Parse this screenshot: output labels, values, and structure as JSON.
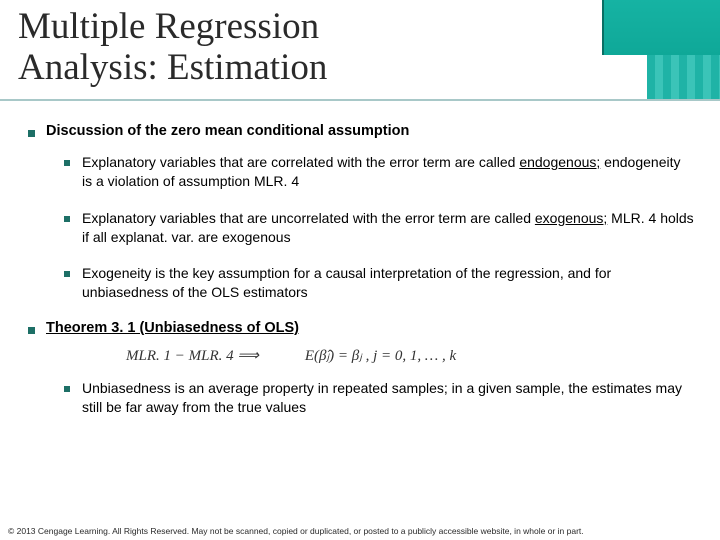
{
  "header": {
    "title_line1": "Multiple Regression",
    "title_line2": "Analysis: Estimation"
  },
  "sections": {
    "s1": {
      "heading": "Discussion of the zero mean conditional assumption",
      "bullets": {
        "b1a": "Explanatory variables that are correlated with the error term are called ",
        "b1b": "endogenous;",
        "b1c": " endogeneity is a violation of assumption MLR. 4",
        "b2a": "Explanatory variables that are uncorrelated with the error term are called ",
        "b2b": "exogenous;",
        "b2c": " MLR. 4 holds if all explanat. var. are exogenous",
        "b3": "Exogeneity is the key assumption for a causal interpretation of the regression, and for unbiasedness of the OLS estimators"
      }
    },
    "s2": {
      "heading": "Theorem 3. 1 (Unbiasedness of OLS)",
      "formula": {
        "left": "MLR. 1 − MLR. 4   ⟹",
        "right": "E(β̂ⱼ) = βⱼ ,    j = 0, 1, … , k"
      },
      "bullets": {
        "b1": "Unbiasedness is an average property in repeated samples; in a given sample, the estimates may still be far away from the true values"
      }
    }
  },
  "footer": "© 2013 Cengage Learning. All Rights Reserved. May not be scanned, copied or duplicated, or posted to a publicly accessible website, in whole or in part.",
  "colors": {
    "bullet": "#1d6f66",
    "accent": "#16b3a3"
  }
}
